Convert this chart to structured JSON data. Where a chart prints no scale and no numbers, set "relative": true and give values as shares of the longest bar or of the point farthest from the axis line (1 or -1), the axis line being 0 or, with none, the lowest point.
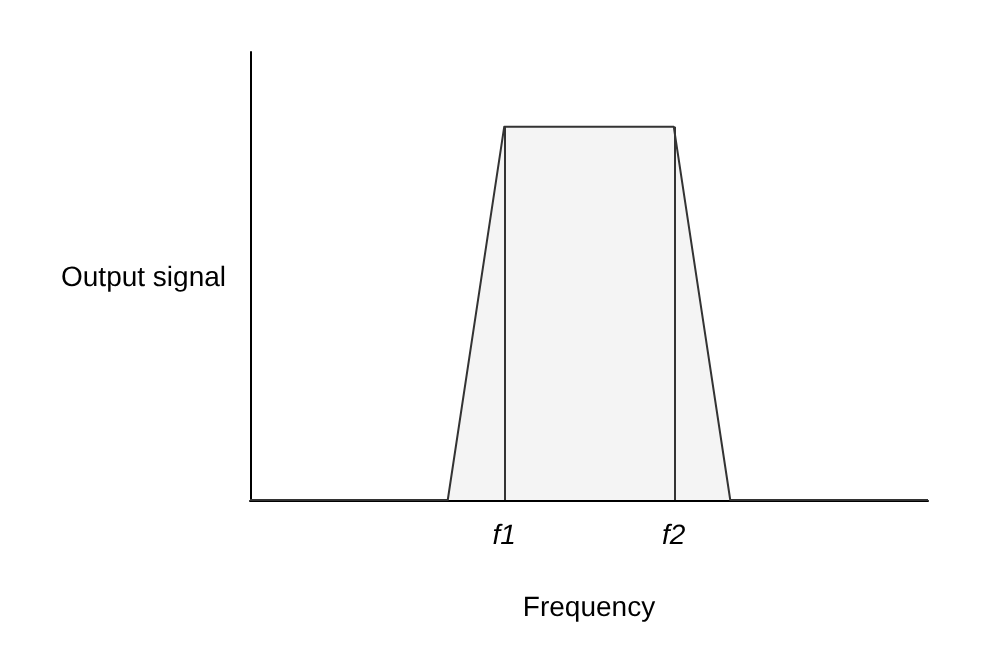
{
  "chart_data": {
    "type": "area",
    "relative": true,
    "xlabel": "Frequency",
    "ylabel": "Output signal",
    "categories": [
      null,
      null,
      null,
      null,
      null,
      null,
      null,
      null,
      null,
      "f1",
      null,
      null,
      null,
      null,
      null,
      "f2",
      null,
      null,
      null,
      null,
      null,
      null,
      null,
      null,
      null
    ],
    "series": [
      {
        "color": "#333333",
        "values": [
          0,
          0,
          0,
          0,
          0,
          0,
          0,
          0,
          0.5,
          1,
          1,
          1,
          1,
          1,
          1,
          1,
          0.5,
          0,
          0,
          0,
          0,
          0,
          0,
          0,
          0
        ]
      }
    ],
    "ref_lines": [
      {
        "axis": "x",
        "value": "f1",
        "color": "#333333"
      },
      {
        "axis": "x",
        "value": "f2",
        "color": "#333333"
      }
    ],
    "grid": false,
    "marker": "none",
    "line_style": "solid"
  }
}
